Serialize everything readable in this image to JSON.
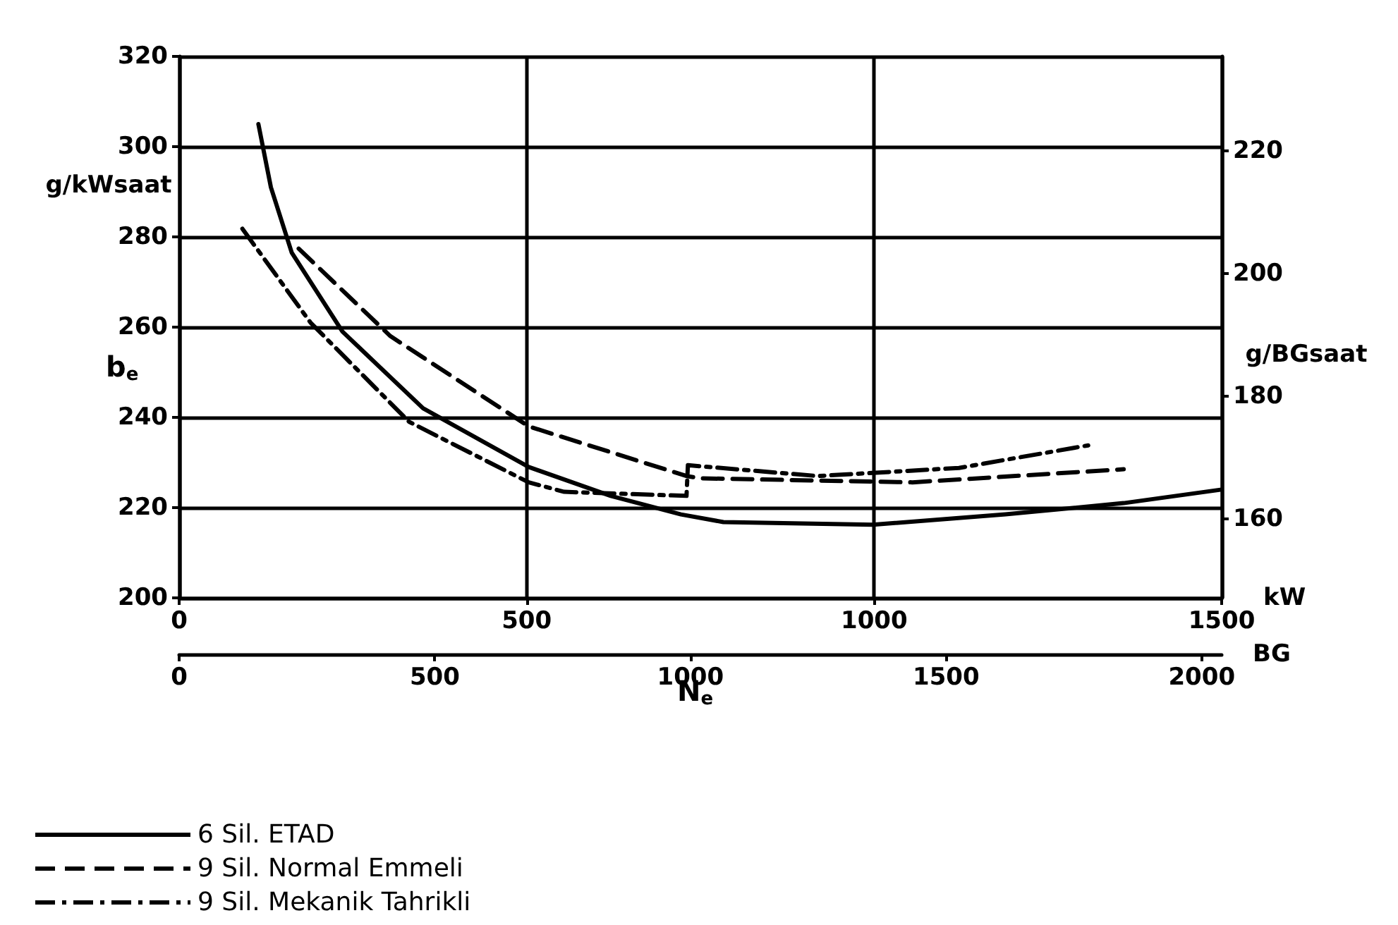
{
  "chart_data": {
    "type": "line",
    "xlabel": "kW",
    "x2label": "BG",
    "ylabel": "g/kWsaat",
    "y2label": "g/BGsaat",
    "annotations": [
      "b$_{e}$",
      "N$_{e}$"
    ],
    "xlim": [
      0,
      1500
    ],
    "xticks": [
      0,
      500,
      1000,
      1500
    ],
    "x2lim": [
      0,
      2039
    ],
    "x2ticks": [
      0,
      500,
      1000,
      1500,
      2000
    ],
    "ylim": [
      200,
      320
    ],
    "yticks": [
      200,
      220,
      240,
      260,
      280,
      300,
      320
    ],
    "y2lim": [
      147.1,
      235.4
    ],
    "y2ticks": [
      160,
      180,
      200,
      220
    ],
    "grid": true,
    "legend": "bottom left",
    "marker": "none",
    "series": [
      {
        "name": "6 Sil. ETAD",
        "color": "#000000",
        "line_style": "solid",
        "x": [
          114,
          132,
          162,
          235,
          351,
          503,
          621,
          722,
          783,
          998,
          1189,
          1359,
          1500
        ],
        "values": [
          305,
          291,
          276.5,
          259,
          242,
          229,
          222.6,
          218.5,
          216.8,
          216.2,
          218.5,
          221,
          224
        ]
      },
      {
        "name": "9 Sil. Normal Emmeli",
        "color": "#000000",
        "line_style": "dashed",
        "x": [
          172,
          304,
          503,
          730,
          750,
          1055,
          1359
        ],
        "values": [
          277.4,
          258,
          238,
          227,
          226.5,
          225.6,
          228.5
        ]
      },
      {
        "name": "9 Sil. Mekanik Tahrikli",
        "color": "#000000",
        "line_style": "dashdot",
        "x": [
          91,
          189,
          331,
          503,
          554,
          730,
          732,
          919,
          1122,
          1308
        ],
        "values": [
          281.8,
          261,
          239,
          225.6,
          223.5,
          222.6,
          229.4,
          227,
          228.8,
          233.8
        ]
      }
    ]
  }
}
